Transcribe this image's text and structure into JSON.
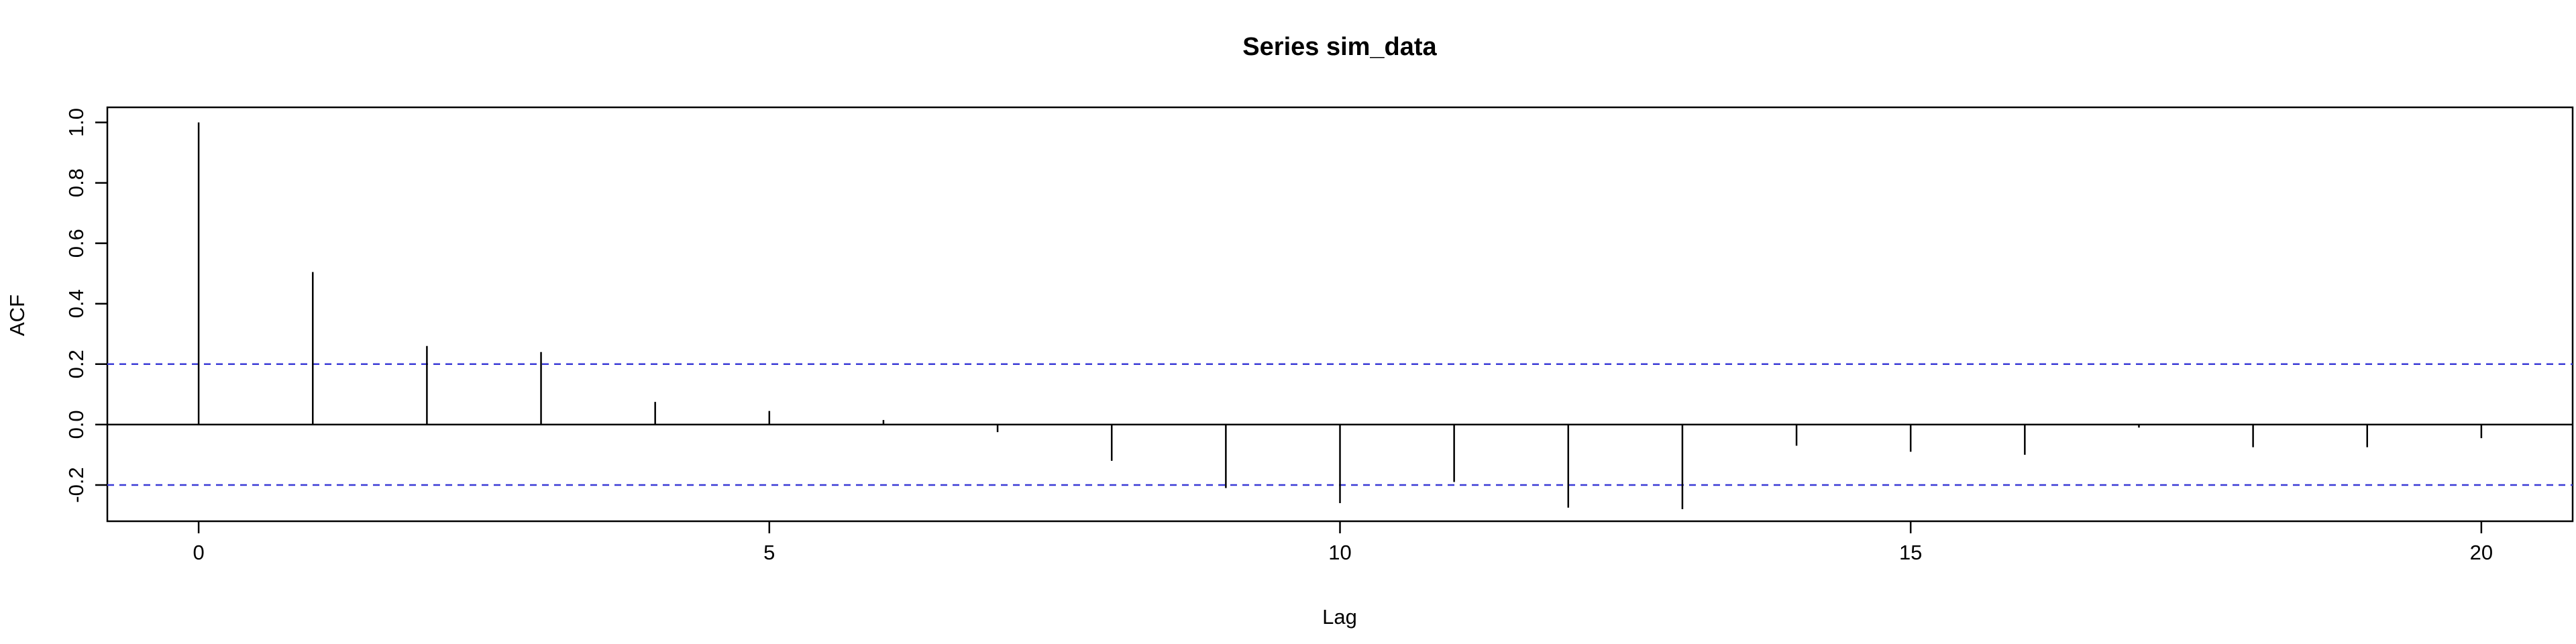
{
  "chart_data": {
    "type": "bar",
    "title": "Series  sim_data",
    "xlabel": "Lag",
    "ylabel": "ACF",
    "xlim": [
      -0.8,
      20.8
    ],
    "ylim": [
      -0.32,
      1.05
    ],
    "x_ticks": [
      0,
      5,
      10,
      15,
      20
    ],
    "x_tick_labels": [
      "0",
      "5",
      "10",
      "15",
      "20"
    ],
    "y_ticks": [
      -0.2,
      0.0,
      0.2,
      0.4,
      0.6,
      0.8,
      1.0
    ],
    "y_tick_labels": [
      "-0.2",
      "0.0",
      "0.2",
      "0.4",
      "0.6",
      "0.8",
      "1.0"
    ],
    "lags": [
      0,
      1,
      2,
      3,
      4,
      5,
      6,
      7,
      8,
      9,
      10,
      11,
      12,
      13,
      14,
      15,
      16,
      17,
      18,
      19,
      20
    ],
    "values": [
      1.0,
      0.505,
      0.26,
      0.24,
      0.075,
      0.045,
      0.015,
      -0.025,
      -0.12,
      -0.21,
      -0.26,
      -0.19,
      -0.275,
      -0.28,
      -0.07,
      -0.09,
      -0.1,
      -0.01,
      -0.075,
      -0.075,
      -0.045
    ],
    "confidence_bound": 0.2,
    "colors": {
      "bars": "#000000",
      "confidence": "#3b3bd6",
      "zero_line": "#000000",
      "frame": "#000000"
    },
    "grid": false,
    "legend": "none"
  }
}
